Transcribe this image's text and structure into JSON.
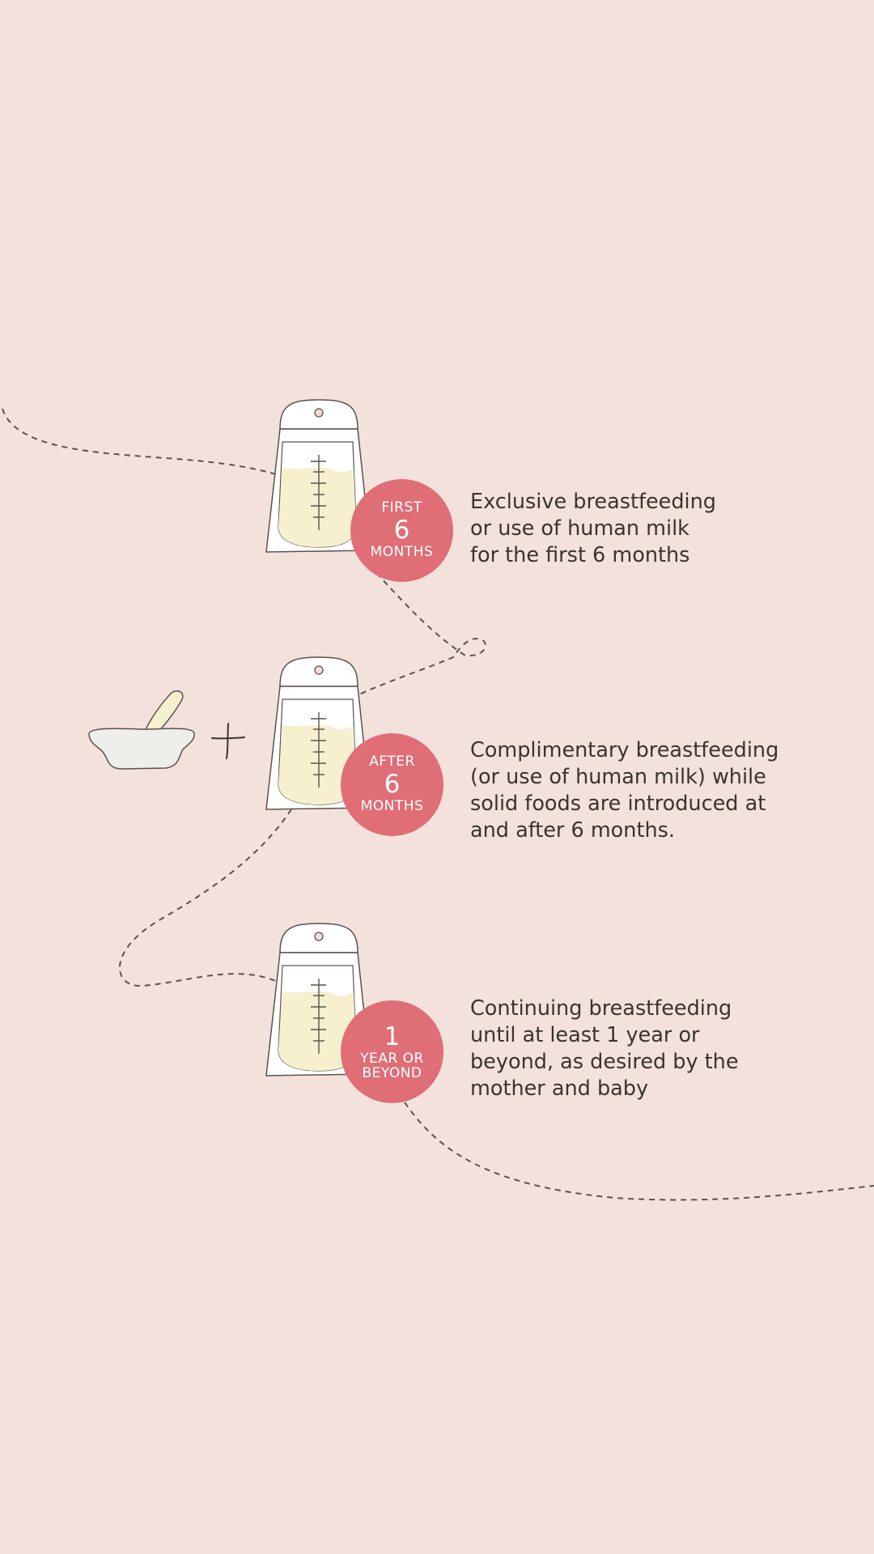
{
  "colors": {
    "background": "#f3e2db",
    "badge": "#df6e77",
    "text": "#3b3330",
    "milk": "#f6f0cf",
    "bottle": "#ffffff",
    "outline": "#5b524e",
    "bowl": "#eeeeea"
  },
  "steps": [
    {
      "badge_top": "FIRST",
      "badge_number": "6",
      "badge_bottom": "MONTHS",
      "caption_lines": [
        "Exclusive breastfeeding",
        "or use of human milk",
        "for the first 6 months"
      ]
    },
    {
      "badge_top": "AFTER",
      "badge_number": "6",
      "badge_bottom": "MONTHS",
      "caption_lines": [
        "Complimentary breastfeeding",
        "(or use of human milk) while",
        "solid foods are introduced at",
        "and after 6 months."
      ]
    },
    {
      "badge_number": "1",
      "badge_sub1": "YEAR OR",
      "badge_sub2": "BEYOND",
      "caption_lines": [
        "Continuing breastfeeding",
        "until at least 1 year or",
        "beyond, as desired by the",
        "mother and baby"
      ]
    }
  ],
  "icons": {
    "bottle": "milk-storage-bag-icon",
    "bowl": "food-bowl-spoon-icon",
    "plus": "plus-icon"
  }
}
